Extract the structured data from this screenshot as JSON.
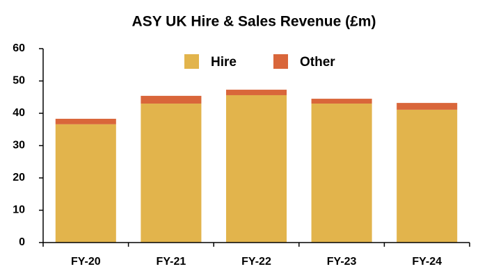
{
  "chart_data": {
    "type": "stacked-bar",
    "title": "ASY UK Hire & Sales Revenue (£m)",
    "categories": [
      "FY-20",
      "FY-21",
      "FY-22",
      "FY-23",
      "FY-24"
    ],
    "series": [
      {
        "name": "Hire",
        "color": "#e2b44c",
        "values": [
          36.6,
          43.0,
          45.6,
          43.0,
          41.1
        ]
      },
      {
        "name": "Other",
        "color": "#d9663a",
        "values": [
          1.7,
          2.4,
          1.7,
          1.5,
          2.1
        ]
      }
    ],
    "ylim": [
      0,
      60
    ],
    "yticks": [
      0,
      10,
      20,
      30,
      40,
      50,
      60
    ],
    "grid": false,
    "legend": "top"
  }
}
